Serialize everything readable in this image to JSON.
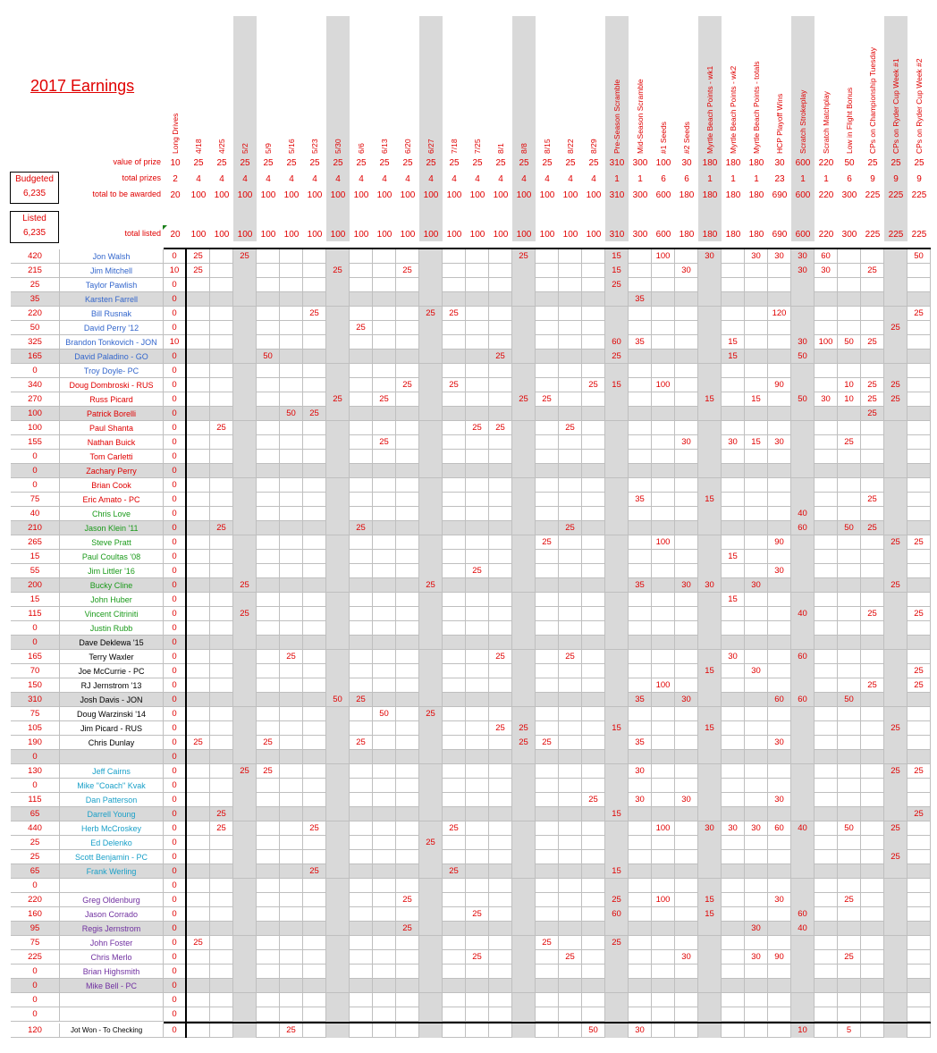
{
  "title": "2017 Earnings",
  "budgeted": {
    "label": "Budgeted",
    "value": "6,235"
  },
  "listed": {
    "label": "Listed",
    "value": "6,235"
  },
  "row_labels": {
    "value_of_prize": "value of prize",
    "total_prizes": "total prizes",
    "total_to_be_awarded": "total to be awarded",
    "total_listed": "total listed"
  },
  "colors": {
    "red": "#e00000",
    "blue": "#3366cc",
    "green": "#1a9a1a",
    "cyan": "#1aa0c8",
    "black": "#000000",
    "purple": "#7030a0",
    "gray": "#d9d9d9"
  },
  "columns": [
    {
      "h": "Long Drives",
      "v": "10",
      "p": "2",
      "a": "20",
      "l": "20",
      "shade": false
    },
    {
      "h": "4/18",
      "v": "25",
      "p": "4",
      "a": "100",
      "l": "100",
      "shade": false
    },
    {
      "h": "4/25",
      "v": "25",
      "p": "4",
      "a": "100",
      "l": "100",
      "shade": false
    },
    {
      "h": "5/2",
      "v": "25",
      "p": "4",
      "a": "100",
      "l": "100",
      "shade": true
    },
    {
      "h": "5/9",
      "v": "25",
      "p": "4",
      "a": "100",
      "l": "100",
      "shade": false
    },
    {
      "h": "5/16",
      "v": "25",
      "p": "4",
      "a": "100",
      "l": "100",
      "shade": false
    },
    {
      "h": "5/23",
      "v": "25",
      "p": "4",
      "a": "100",
      "l": "100",
      "shade": false
    },
    {
      "h": "5/30",
      "v": "25",
      "p": "4",
      "a": "100",
      "l": "100",
      "shade": true
    },
    {
      "h": "6/6",
      "v": "25",
      "p": "4",
      "a": "100",
      "l": "100",
      "shade": false
    },
    {
      "h": "6/13",
      "v": "25",
      "p": "4",
      "a": "100",
      "l": "100",
      "shade": false
    },
    {
      "h": "6/20",
      "v": "25",
      "p": "4",
      "a": "100",
      "l": "100",
      "shade": false
    },
    {
      "h": "6/27",
      "v": "25",
      "p": "4",
      "a": "100",
      "l": "100",
      "shade": true
    },
    {
      "h": "7/18",
      "v": "25",
      "p": "4",
      "a": "100",
      "l": "100",
      "shade": false
    },
    {
      "h": "7/25",
      "v": "25",
      "p": "4",
      "a": "100",
      "l": "100",
      "shade": false
    },
    {
      "h": "8/1",
      "v": "25",
      "p": "4",
      "a": "100",
      "l": "100",
      "shade": false
    },
    {
      "h": "8/8",
      "v": "25",
      "p": "4",
      "a": "100",
      "l": "100",
      "shade": true
    },
    {
      "h": "8/15",
      "v": "25",
      "p": "4",
      "a": "100",
      "l": "100",
      "shade": false
    },
    {
      "h": "8/22",
      "v": "25",
      "p": "4",
      "a": "100",
      "l": "100",
      "shade": false
    },
    {
      "h": "8/29",
      "v": "25",
      "p": "4",
      "a": "100",
      "l": "100",
      "shade": false
    },
    {
      "h": "Pre-Season Scramble",
      "v": "310",
      "p": "1",
      "a": "310",
      "l": "310",
      "shade": true
    },
    {
      "h": "Mid-Season Scramble",
      "v": "300",
      "p": "1",
      "a": "300",
      "l": "300",
      "shade": false
    },
    {
      "h": "#1 Seeds",
      "v": "100",
      "p": "6",
      "a": "600",
      "l": "600",
      "shade": false
    },
    {
      "h": "#2 Seeds",
      "v": "30",
      "p": "6",
      "a": "180",
      "l": "180",
      "shade": false
    },
    {
      "h": "Myrtle Beach Points - wk1",
      "v": "180",
      "p": "1",
      "a": "180",
      "l": "180",
      "shade": true
    },
    {
      "h": "Myrtle Beach Points - wk2",
      "v": "180",
      "p": "1",
      "a": "180",
      "l": "180",
      "shade": false
    },
    {
      "h": "Myrtle Beach Points - totals",
      "v": "180",
      "p": "1",
      "a": "180",
      "l": "180",
      "shade": false
    },
    {
      "h": "HCP Playoff Wins",
      "v": "30",
      "p": "23",
      "a": "690",
      "l": "690",
      "shade": false
    },
    {
      "h": "Scratch Strokeplay",
      "v": "600",
      "p": "1",
      "a": "600",
      "l": "600",
      "shade": true
    },
    {
      "h": "Scratch Matchplay",
      "v": "220",
      "p": "1",
      "a": "220",
      "l": "220",
      "shade": false
    },
    {
      "h": "Low in Flight Bonus",
      "v": "50",
      "p": "6",
      "a": "300",
      "l": "300",
      "shade": false
    },
    {
      "h": "CPs on Championship Tuesday",
      "v": "25",
      "p": "9",
      "a": "225",
      "l": "225",
      "shade": false
    },
    {
      "h": "CPs on Ryder Cup Week #1",
      "v": "25",
      "p": "9",
      "a": "225",
      "l": "225",
      "shade": true
    },
    {
      "h": "CPs on Ryder Cup Week #2",
      "v": "25",
      "p": "9",
      "a": "225",
      "l": "225",
      "shade": false
    }
  ],
  "players": [
    {
      "total": "420",
      "name": "Jon Walsh",
      "color": "blue",
      "alt": false,
      "cells": {
        "0": "0",
        "1": "25",
        "3": "25",
        "15": "25",
        "19": "15",
        "21": "100",
        "23": "30",
        "25": "30",
        "26": "30",
        "27": "30",
        "28": "60",
        "32": "50"
      }
    },
    {
      "total": "215",
      "name": "Jim Mitchell",
      "color": "blue",
      "alt": false,
      "cells": {
        "0": "10",
        "1": "25",
        "7": "25",
        "10": "25",
        "19": "15",
        "22": "30",
        "27": "30",
        "28": "30",
        "30": "25"
      }
    },
    {
      "total": "25",
      "name": "Taylor Pawlish",
      "color": "blue",
      "alt": false,
      "cells": {
        "0": "0",
        "19": "25"
      }
    },
    {
      "total": "35",
      "name": "Karsten Farrell",
      "color": "blue",
      "alt": true,
      "cells": {
        "0": "0",
        "20": "35"
      }
    },
    {
      "total": "220",
      "name": "Bill Rusnak",
      "color": "blue",
      "alt": false,
      "cells": {
        "0": "0",
        "6": "25",
        "11": "25",
        "12": "25",
        "26": "120",
        "32": "25"
      }
    },
    {
      "total": "50",
      "name": "David Perry '12",
      "color": "blue",
      "alt": false,
      "cells": {
        "0": "0",
        "8": "25",
        "31": "25"
      }
    },
    {
      "total": "325",
      "name": "Brandon Tonkovich - JON",
      "color": "blue",
      "alt": false,
      "cells": {
        "0": "10",
        "19": "60",
        "20": "35",
        "24": "15",
        "27": "30",
        "28": "100",
        "29": "50",
        "30": "25"
      }
    },
    {
      "total": "165",
      "name": "David Paladino - GO",
      "color": "blue",
      "alt": true,
      "cells": {
        "0": "0",
        "4": "50",
        "14": "25",
        "19": "25",
        "24": "15",
        "27": "50"
      }
    },
    {
      "total": "0",
      "name": "Troy Doyle- PC",
      "color": "blue",
      "alt": false,
      "cells": {
        "0": "0"
      }
    },
    {
      "total": "340",
      "name": "Doug Dombroski - RUS",
      "color": "red",
      "alt": false,
      "cells": {
        "0": "0",
        "10": "25",
        "12": "25",
        "18": "25",
        "19": "15",
        "21": "100",
        "26": "90",
        "29": "10",
        "30": "25",
        "31": "25"
      }
    },
    {
      "total": "270",
      "name": "Russ Picard",
      "color": "red",
      "alt": false,
      "cells": {
        "0": "0",
        "7": "25",
        "9": "25",
        "15": "25",
        "16": "25",
        "23": "15",
        "25": "15",
        "27": "50",
        "28": "30",
        "29": "10",
        "30": "25",
        "31": "25"
      }
    },
    {
      "total": "100",
      "name": "Patrick Borelli",
      "color": "red",
      "alt": true,
      "cells": {
        "0": "0",
        "5": "50",
        "6": "25",
        "30": "25"
      }
    },
    {
      "total": "100",
      "name": "Paul Shanta",
      "color": "red",
      "alt": false,
      "cells": {
        "0": "0",
        "2": "25",
        "13": "25",
        "14": "25",
        "17": "25"
      }
    },
    {
      "total": "155",
      "name": "Nathan Buick",
      "color": "red",
      "alt": false,
      "cells": {
        "0": "0",
        "9": "25",
        "22": "30",
        "24": "30",
        "25": "15",
        "26": "30",
        "29": "25"
      }
    },
    {
      "total": "0",
      "name": "Tom Carletti",
      "color": "red",
      "alt": false,
      "cells": {
        "0": "0"
      }
    },
    {
      "total": "0",
      "name": "Zachary Perry",
      "color": "red",
      "alt": true,
      "cells": {
        "0": "0"
      }
    },
    {
      "total": "0",
      "name": "Brian Cook",
      "color": "red",
      "alt": false,
      "cells": {
        "0": "0"
      }
    },
    {
      "total": "75",
      "name": "Eric Amato - PC",
      "color": "red",
      "alt": false,
      "cells": {
        "0": "0",
        "20": "35",
        "23": "15",
        "30": "25"
      }
    },
    {
      "total": "40",
      "name": "Chris Love",
      "color": "green",
      "alt": false,
      "cells": {
        "0": "0",
        "27": "40"
      }
    },
    {
      "total": "210",
      "name": "Jason Klein '11",
      "color": "green",
      "alt": true,
      "cells": {
        "0": "0",
        "2": "25",
        "8": "25",
        "17": "25",
        "27": "60",
        "29": "50",
        "30": "25"
      }
    },
    {
      "total": "265",
      "name": "Steve Pratt",
      "color": "green",
      "alt": false,
      "cells": {
        "0": "0",
        "16": "25",
        "21": "100",
        "26": "90",
        "31": "25",
        "32": "25"
      }
    },
    {
      "total": "15",
      "name": "Paul Coultas '08",
      "color": "green",
      "alt": false,
      "cells": {
        "0": "0",
        "24": "15"
      }
    },
    {
      "total": "55",
      "name": "Jim Littler '16",
      "color": "green",
      "alt": false,
      "cells": {
        "0": "0",
        "13": "25",
        "26": "30"
      }
    },
    {
      "total": "200",
      "name": "Bucky Cline",
      "color": "green",
      "alt": true,
      "cells": {
        "0": "0",
        "3": "25",
        "11": "25",
        "20": "35",
        "22": "30",
        "23": "30",
        "25": "30",
        "31": "25"
      }
    },
    {
      "total": "15",
      "name": "John Huber",
      "color": "green",
      "alt": false,
      "cells": {
        "0": "0",
        "24": "15"
      }
    },
    {
      "total": "115",
      "name": "Vincent Citriniti",
      "color": "green",
      "alt": false,
      "cells": {
        "0": "0",
        "3": "25",
        "27": "40",
        "30": "25",
        "32": "25"
      }
    },
    {
      "total": "0",
      "name": "Justin Rubb",
      "color": "green",
      "alt": false,
      "cells": {
        "0": "0"
      }
    },
    {
      "total": "0",
      "name": "Dave Deklewa '15",
      "color": "black",
      "alt": true,
      "cells": {
        "0": "0"
      }
    },
    {
      "total": "165",
      "name": "Terry Waxler",
      "color": "black",
      "alt": false,
      "cells": {
        "0": "0",
        "5": "25",
        "14": "25",
        "17": "25",
        "24": "30",
        "27": "60"
      }
    },
    {
      "total": "70",
      "name": "Joe McCurrie - PC",
      "color": "black",
      "alt": false,
      "cells": {
        "0": "0",
        "23": "15",
        "25": "30",
        "32": "25"
      }
    },
    {
      "total": "150",
      "name": "RJ Jernstrom '13",
      "color": "black",
      "alt": false,
      "cells": {
        "0": "0",
        "21": "100",
        "30": "25",
        "32": "25"
      }
    },
    {
      "total": "310",
      "name": "Josh Davis - JON",
      "color": "black",
      "alt": true,
      "cells": {
        "0": "0",
        "7": "50",
        "8": "25",
        "20": "35",
        "22": "30",
        "26": "60",
        "27": "60",
        "29": "50"
      }
    },
    {
      "total": "75",
      "name": "Doug Warzinski '14",
      "color": "black",
      "alt": false,
      "cells": {
        "0": "0",
        "9": "50",
        "11": "25"
      }
    },
    {
      "total": "105",
      "name": "Jim Picard - RUS",
      "color": "black",
      "alt": false,
      "cells": {
        "0": "0",
        "14": "25",
        "15": "25",
        "19": "15",
        "23": "15",
        "31": "25"
      }
    },
    {
      "total": "190",
      "name": "Chris Dunlay",
      "color": "black",
      "alt": false,
      "cells": {
        "0": "0",
        "1": "25",
        "4": "25",
        "8": "25",
        "15": "25",
        "16": "25",
        "20": "35",
        "26": "30"
      }
    },
    {
      "total": "0",
      "name": "",
      "color": "black",
      "alt": true,
      "cells": {
        "0": "0"
      }
    },
    {
      "total": "130",
      "name": "Jeff Cairns",
      "color": "cyan",
      "alt": false,
      "cells": {
        "0": "0",
        "3": "25",
        "4": "25",
        "20": "30",
        "31": "25",
        "32": "25"
      }
    },
    {
      "total": "0",
      "name": "Mike \"Coach\" Kvak",
      "color": "cyan",
      "alt": false,
      "cells": {
        "0": "0"
      }
    },
    {
      "total": "115",
      "name": "Dan Patterson",
      "color": "cyan",
      "alt": false,
      "cells": {
        "0": "0",
        "18": "25",
        "20": "30",
        "22": "30",
        "26": "30"
      }
    },
    {
      "total": "65",
      "name": "Darrell Young",
      "color": "cyan",
      "alt": true,
      "cells": {
        "0": "0",
        "2": "25",
        "19": "15",
        "32": "25"
      }
    },
    {
      "total": "440",
      "name": "Herb McCroskey",
      "color": "cyan",
      "alt": false,
      "cells": {
        "0": "0",
        "2": "25",
        "6": "25",
        "12": "25",
        "21": "100",
        "23": "30",
        "24": "30",
        "25": "30",
        "26": "60",
        "27": "40",
        "29": "50",
        "31": "25"
      }
    },
    {
      "total": "25",
      "name": "Ed Delenko",
      "color": "cyan",
      "alt": false,
      "cells": {
        "0": "0",
        "11": "25"
      }
    },
    {
      "total": "25",
      "name": "Scott Benjamin - PC",
      "color": "cyan",
      "alt": false,
      "cells": {
        "0": "0",
        "31": "25"
      }
    },
    {
      "total": "65",
      "name": "Frank Werling",
      "color": "cyan",
      "alt": true,
      "cells": {
        "0": "0",
        "6": "25",
        "12": "25",
        "19": "15"
      }
    },
    {
      "total": "0",
      "name": "",
      "color": "cyan",
      "alt": false,
      "cells": {
        "0": "0"
      }
    },
    {
      "total": "220",
      "name": "Greg Oldenburg",
      "color": "purple",
      "alt": false,
      "cells": {
        "0": "0",
        "10": "25",
        "19": "25",
        "21": "100",
        "23": "15",
        "26": "30",
        "29": "25"
      }
    },
    {
      "total": "160",
      "name": "Jason Corrado",
      "color": "purple",
      "alt": false,
      "cells": {
        "0": "0",
        "13": "25",
        "19": "60",
        "23": "15",
        "27": "60"
      }
    },
    {
      "total": "95",
      "name": "Regis Jernstrom",
      "color": "purple",
      "alt": true,
      "cells": {
        "0": "0",
        "10": "25",
        "25": "30",
        "27": "40"
      }
    },
    {
      "total": "75",
      "name": "John Foster",
      "color": "purple",
      "alt": false,
      "cells": {
        "0": "0",
        "1": "25",
        "16": "25",
        "19": "25"
      }
    },
    {
      "total": "225",
      "name": "Chris Merlo",
      "color": "purple",
      "alt": false,
      "cells": {
        "0": "0",
        "13": "25",
        "17": "25",
        "22": "30",
        "25": "30",
        "26": "90",
        "29": "25"
      }
    },
    {
      "total": "0",
      "name": "Brian Highsmith",
      "color": "purple",
      "alt": false,
      "cells": {
        "0": "0"
      }
    },
    {
      "total": "0",
      "name": "Mike Bell - PC",
      "color": "purple",
      "alt": true,
      "cells": {
        "0": "0"
      }
    },
    {
      "total": "0",
      "name": "",
      "color": "purple",
      "alt": false,
      "cells": {
        "0": "0"
      }
    },
    {
      "total": "0",
      "name": "",
      "color": "purple",
      "alt": false,
      "cells": {
        "0": "0"
      }
    }
  ],
  "footer": {
    "total": "120",
    "name": "Jot Won - To Checking Buffer",
    "cells": {
      "0": "0",
      "5": "25",
      "18": "50",
      "20": "30",
      "27": "10",
      "29": "5"
    }
  }
}
